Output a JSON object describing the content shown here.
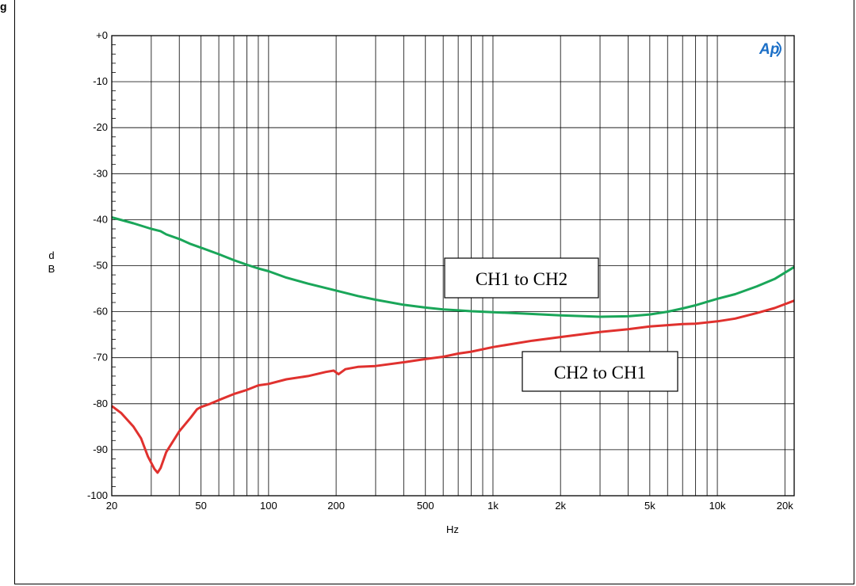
{
  "figure_label": "g",
  "chart_data": {
    "type": "line",
    "xlabel": "Hz",
    "ylabel": [
      "d",
      "B"
    ],
    "xscale": "log",
    "xlim": [
      20,
      22000
    ],
    "ylim": [
      -100,
      0
    ],
    "grid": true,
    "logo_text": "Ap",
    "x_ticks": [
      {
        "value": 20,
        "label": "20"
      },
      {
        "value": 50,
        "label": "50"
      },
      {
        "value": 100,
        "label": "100"
      },
      {
        "value": 200,
        "label": "200"
      },
      {
        "value": 500,
        "label": "500"
      },
      {
        "value": 1000,
        "label": "1k"
      },
      {
        "value": 2000,
        "label": "2k"
      },
      {
        "value": 5000,
        "label": "5k"
      },
      {
        "value": 10000,
        "label": "10k"
      },
      {
        "value": 20000,
        "label": "20k"
      }
    ],
    "y_ticks": [
      {
        "value": 0,
        "label": "+0"
      },
      {
        "value": -10,
        "label": "-10"
      },
      {
        "value": -20,
        "label": "-20"
      },
      {
        "value": -30,
        "label": "-30"
      },
      {
        "value": -40,
        "label": "-40"
      },
      {
        "value": -50,
        "label": "-50"
      },
      {
        "value": -60,
        "label": "-60"
      },
      {
        "value": -70,
        "label": "-70"
      },
      {
        "value": -80,
        "label": "-80"
      },
      {
        "value": -90,
        "label": "-90"
      },
      {
        "value": -100,
        "label": "-100"
      }
    ],
    "series": [
      {
        "name": "CH1 to CH2",
        "color": "#1aa659",
        "points": [
          [
            20,
            -39.5
          ],
          [
            25,
            -40.8
          ],
          [
            30,
            -42
          ],
          [
            33,
            -42.5
          ],
          [
            35,
            -43.2
          ],
          [
            40,
            -44.2
          ],
          [
            45,
            -45.3
          ],
          [
            50,
            -46.1
          ],
          [
            60,
            -47.5
          ],
          [
            70,
            -48.8
          ],
          [
            80,
            -49.8
          ],
          [
            90,
            -50.6
          ],
          [
            100,
            -51.2
          ],
          [
            120,
            -52.6
          ],
          [
            150,
            -53.9
          ],
          [
            200,
            -55.4
          ],
          [
            250,
            -56.6
          ],
          [
            300,
            -57.4
          ],
          [
            400,
            -58.5
          ],
          [
            500,
            -59.1
          ],
          [
            600,
            -59.5
          ],
          [
            700,
            -59.7
          ],
          [
            800,
            -59.9
          ],
          [
            1000,
            -60.1
          ],
          [
            1500,
            -60.5
          ],
          [
            2000,
            -60.8
          ],
          [
            3000,
            -61.1
          ],
          [
            4000,
            -61.0
          ],
          [
            5000,
            -60.6
          ],
          [
            6000,
            -60.0
          ],
          [
            7000,
            -59.3
          ],
          [
            8000,
            -58.6
          ],
          [
            10000,
            -57.2
          ],
          [
            12000,
            -56.2
          ],
          [
            15000,
            -54.5
          ],
          [
            18000,
            -52.9
          ],
          [
            22000,
            -50.3
          ]
        ]
      },
      {
        "name": "CH2 to CH1",
        "color": "#e0312e",
        "points": [
          [
            20,
            -80.5
          ],
          [
            22,
            -82
          ],
          [
            25,
            -85
          ],
          [
            27,
            -87.5
          ],
          [
            29,
            -91.5
          ],
          [
            31,
            -94.2
          ],
          [
            32,
            -95
          ],
          [
            33,
            -94
          ],
          [
            35,
            -90.5
          ],
          [
            40,
            -86
          ],
          [
            45,
            -83
          ],
          [
            48,
            -81.2
          ],
          [
            50,
            -80.7
          ],
          [
            55,
            -80
          ],
          [
            60,
            -79.2
          ],
          [
            70,
            -77.9
          ],
          [
            80,
            -77
          ],
          [
            90,
            -76
          ],
          [
            100,
            -75.7
          ],
          [
            120,
            -74.7
          ],
          [
            150,
            -74
          ],
          [
            180,
            -73.1
          ],
          [
            195,
            -72.8
          ],
          [
            205,
            -73.6
          ],
          [
            220,
            -72.5
          ],
          [
            250,
            -72
          ],
          [
            300,
            -71.8
          ],
          [
            400,
            -71
          ],
          [
            500,
            -70.3
          ],
          [
            600,
            -69.8
          ],
          [
            700,
            -69.1
          ],
          [
            800,
            -68.7
          ],
          [
            1000,
            -67.7
          ],
          [
            1500,
            -66.3
          ],
          [
            2000,
            -65.5
          ],
          [
            3000,
            -64.4
          ],
          [
            4000,
            -63.8
          ],
          [
            5000,
            -63.2
          ],
          [
            7000,
            -62.7
          ],
          [
            8000,
            -62.6
          ],
          [
            10000,
            -62.1
          ],
          [
            12000,
            -61.5
          ],
          [
            15000,
            -60.3
          ],
          [
            18000,
            -59.2
          ],
          [
            22000,
            -57.6
          ]
        ]
      }
    ],
    "annotations": [
      {
        "text": "CH1 to CH2",
        "series": 0
      },
      {
        "text": "CH2 to CH1",
        "series": 1
      }
    ]
  }
}
